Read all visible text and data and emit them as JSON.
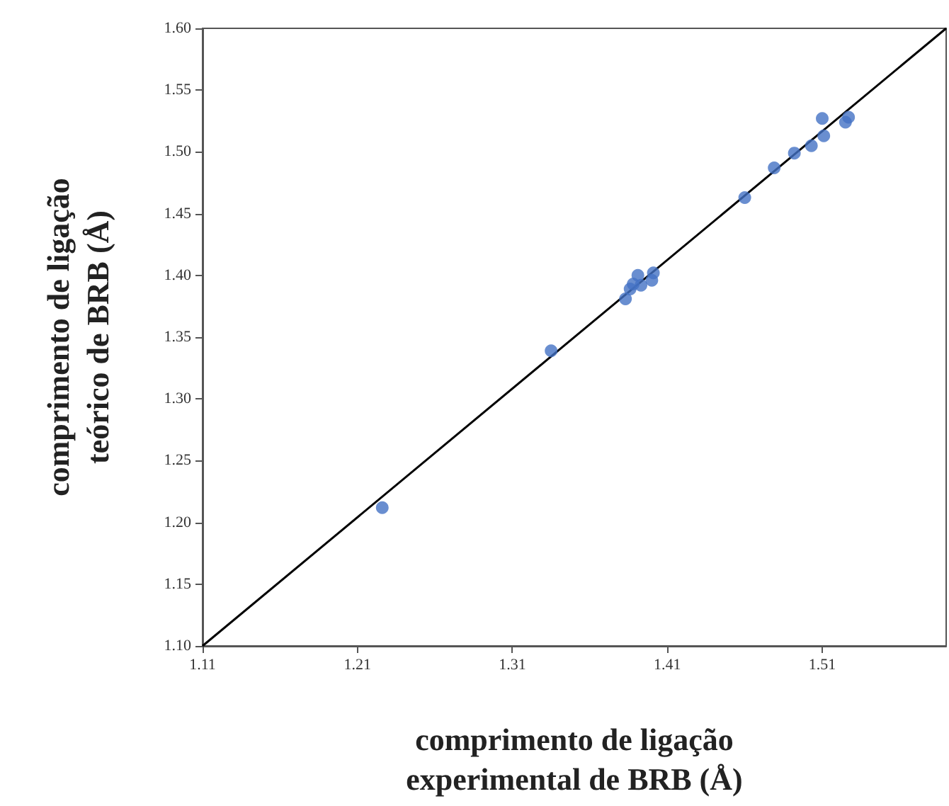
{
  "chart_data": {
    "type": "scatter",
    "xlabel": "comprimento de ligação\nexperimental de BRB (Å)",
    "ylabel": "comprimento de ligação\nteórico de BRB (Å)",
    "xlim": [
      1.11,
      1.59
    ],
    "xticks": [
      1.11,
      1.21,
      1.31,
      1.41,
      1.51
    ],
    "ylim": [
      1.1,
      1.6
    ],
    "yticks": [
      {
        "value": 1.1,
        "label": "1.10"
      },
      1.15,
      {
        "value": 1.2,
        "label": "1.20"
      },
      1.25,
      {
        "value": 1.3,
        "label": "1.30"
      },
      1.35,
      {
        "value": 1.4,
        "label": "1.40"
      },
      1.45,
      {
        "value": 1.5,
        "label": "1.50"
      },
      1.55,
      {
        "value": 1.6,
        "label": "1.60"
      }
    ],
    "grid": false,
    "marker": "circle",
    "series": [
      {
        "type": "scatter",
        "color": "#4472c4",
        "x": [
          1.226,
          1.335,
          1.383,
          1.386,
          1.388,
          1.391,
          1.393,
          1.4,
          1.401,
          1.46,
          1.479,
          1.492,
          1.503,
          1.511,
          1.51,
          1.525,
          1.527
        ],
        "values": [
          1.212,
          1.339,
          1.381,
          1.389,
          1.393,
          1.4,
          1.392,
          1.396,
          1.402,
          1.463,
          1.487,
          1.499,
          1.505,
          1.513,
          1.527,
          1.524,
          1.528
        ]
      },
      {
        "type": "line",
        "color": "#000000",
        "marker": "none",
        "line_style": "solid",
        "x": [
          1.11,
          1.59
        ],
        "values": [
          1.1,
          1.6
        ]
      }
    ]
  }
}
